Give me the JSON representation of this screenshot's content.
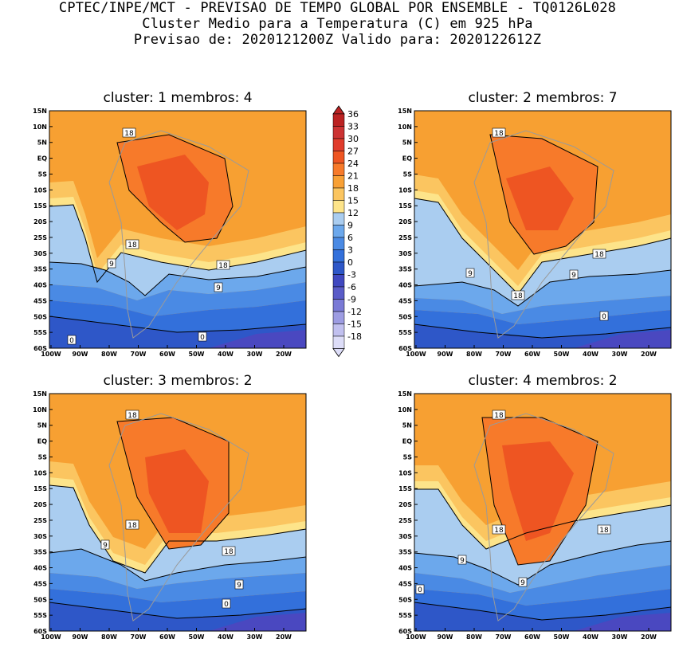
{
  "header": {
    "line1": "CPTEC/INPE/MCT - PREVISAO DE TEMPO GLOBAL POR ENSEMBLE - TQ0126L028",
    "line2": "Cluster Medio para a Temperatura (C) em 925 hPa",
    "line3": "Previsao de: 2020121200Z   Valido para: 2020122612Z"
  },
  "panels": [
    {
      "title": "cluster: 1  membros: 4",
      "labels": [
        "18",
        "18",
        "18",
        "9",
        "9",
        "0",
        "0"
      ]
    },
    {
      "title": "cluster: 2  membros: 7",
      "labels": [
        "18",
        "18",
        "18",
        "9",
        "9",
        "0"
      ]
    },
    {
      "title": "cluster: 3  membros: 2",
      "labels": [
        "18",
        "18",
        "18",
        "9",
        "9",
        "0"
      ]
    },
    {
      "title": "cluster: 4  membros: 2",
      "labels": [
        "18",
        "18",
        "18",
        "9",
        "9",
        "0"
      ]
    }
  ],
  "axes": {
    "lat_ticks": [
      "15N",
      "10N",
      "5N",
      "EQ",
      "5S",
      "10S",
      "15S",
      "20S",
      "25S",
      "30S",
      "35S",
      "40S",
      "45S",
      "50S",
      "55S",
      "60S"
    ],
    "lon_ticks": [
      "100W",
      "90W",
      "80W",
      "70W",
      "60W",
      "50W",
      "40W",
      "30W",
      "20W"
    ]
  },
  "colorbar": {
    "labels": [
      "36",
      "33",
      "30",
      "27",
      "24",
      "21",
      "18",
      "15",
      "12",
      "9",
      "6",
      "3",
      "0",
      "-3",
      "-6",
      "-9",
      "-12",
      "-15",
      "-18"
    ],
    "colors": [
      "#bb2222",
      "#cc3333",
      "#e03c2c",
      "#ee5522",
      "#f77a2a",
      "#f8a035",
      "#fbc560",
      "#fde48a",
      "#aacdf0",
      "#6ca8ec",
      "#4a8ae4",
      "#3370db",
      "#2e57c8",
      "#4048c0",
      "#5a5cc8",
      "#7a7ad6",
      "#9d9ce2",
      "#c1c0ef",
      "#ddddf8"
    ]
  },
  "palette": {
    "ocean_warm": "#f7a032",
    "ocean_mid": "#fbc560",
    "pale": "#fde48a",
    "cold1": "#aacdf0",
    "cold2": "#6ca8ec",
    "cold3": "#4a8ae4",
    "cold4": "#3370db",
    "cold5": "#2e57c8",
    "coldest": "#4a48c0",
    "hot1": "#f77a2a",
    "hot2": "#ee5522",
    "hot3": "#e03c2c",
    "land_outline": "#9a9a9a"
  }
}
